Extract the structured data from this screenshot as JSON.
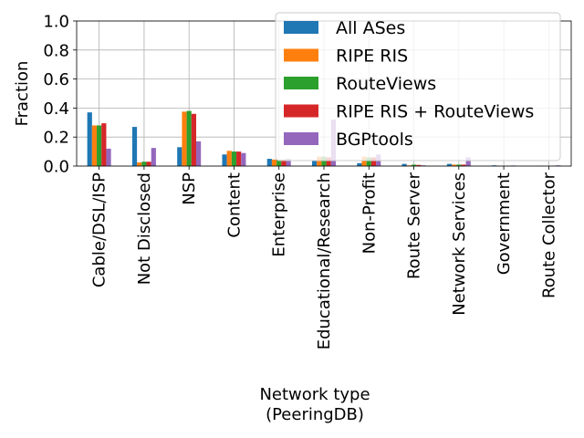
{
  "chart_data": {
    "type": "bar",
    "ylabel": "Fraction",
    "xlabel_line1": "Network type",
    "xlabel_line2": "(PeeringDB)",
    "ylim": [
      0,
      1.0
    ],
    "yticks": [
      "0.0",
      "0.2",
      "0.4",
      "0.6",
      "0.8",
      "1.0"
    ],
    "grid": true,
    "legend_position": "top-right",
    "categories": [
      "Cable/DSL/ISP",
      "Not Disclosed",
      "NSP",
      "Content",
      "Enterprise",
      "Educational/Research",
      "Non-Profit",
      "Route Server",
      "Network Services",
      "Government",
      "Route Collector"
    ],
    "series": [
      {
        "name": "All ASes",
        "color": "#1f77b4",
        "values": [
          0.37,
          0.27,
          0.13,
          0.08,
          0.05,
          0.04,
          0.02,
          0.015,
          0.015,
          0.005,
          0.002
        ]
      },
      {
        "name": "RIPE RIS",
        "color": "#ff7f0e",
        "values": [
          0.28,
          0.025,
          0.375,
          0.105,
          0.045,
          0.065,
          0.065,
          0.005,
          0.01,
          0.002,
          0.001
        ]
      },
      {
        "name": "RouteViews",
        "color": "#2ca02c",
        "values": [
          0.28,
          0.03,
          0.38,
          0.1,
          0.045,
          0.065,
          0.06,
          0.01,
          0.01,
          0.002,
          0.001
        ]
      },
      {
        "name": "RIPE RIS + RouteViews",
        "color": "#d62728",
        "values": [
          0.295,
          0.03,
          0.36,
          0.1,
          0.045,
          0.06,
          0.06,
          0.008,
          0.01,
          0.002,
          0.001
        ]
      },
      {
        "name": "BGPtools",
        "color": "#9467bd",
        "values": [
          0.12,
          0.125,
          0.17,
          0.09,
          0.05,
          0.32,
          0.08,
          0.005,
          0.06,
          0.004,
          0.005
        ]
      }
    ]
  }
}
